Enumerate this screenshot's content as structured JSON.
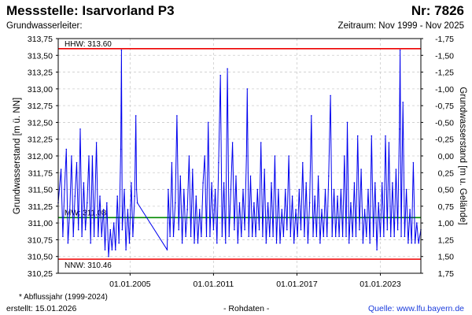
{
  "header": {
    "title": "Messstelle: Isarvorland P3",
    "number": "Nr: 7826",
    "aquifer": "Grundwasserleiter:",
    "period": "Zeitraum: Nov 1999 - Nov 2025"
  },
  "footer": {
    "note": "* Abflussjahr (1999-2024)",
    "created": "erstellt:  15.01.2026",
    "data_kind": "- Rohdaten -",
    "source": "Quelle: www.lfu.bayern.de"
  },
  "colors": {
    "series": "#0000ee",
    "hhw_nnw": "#ee0000",
    "mw": "#008800",
    "grid": "#cccccc"
  },
  "chart_data": {
    "type": "line",
    "title": "",
    "ylabel": "Grundwasserstand [m ü. NN]",
    "y2label": "Grundwasserstand [m u. Gelände]",
    "ylim": [
      310.25,
      313.75
    ],
    "y_ticks": [
      "313,75",
      "313,50",
      "313,25",
      "313,00",
      "312,75",
      "312,50",
      "312,25",
      "312,00",
      "311,75",
      "311,50",
      "311,25",
      "311,00",
      "310,75",
      "310,50",
      "310,25"
    ],
    "y2lim": [
      1.75,
      -1.75
    ],
    "y2_ticks": [
      "-1,75",
      "-1,50",
      "-1,25",
      "-1,00",
      "-0,75",
      "-0,50",
      "-0,25",
      "0,00",
      "0,25",
      "0,50",
      "0,75",
      "1,00",
      "1,25",
      "1,50",
      "1,75"
    ],
    "xlim": [
      "1999-11-01",
      "2025-11-30"
    ],
    "x_ticks": [
      {
        "date": "2005-01-01",
        "label": "01.01.2005"
      },
      {
        "date": "2011-01-01",
        "label": "01.01.2011"
      },
      {
        "date": "2017-01-01",
        "label": "01.01.2017"
      },
      {
        "date": "2023-01-01",
        "label": "01.01.2023"
      }
    ],
    "grid": true,
    "reference_lines": [
      {
        "key": "hhw",
        "label": "HHW: 313.60",
        "value": 313.6
      },
      {
        "key": "mw",
        "label": "MW: 311.08",
        "value": 311.08
      },
      {
        "key": "nnw",
        "label": "NNW: 310.46",
        "value": 310.46
      }
    ],
    "series": [
      {
        "points": [
          {
            "x": "1999-11-01",
            "y": 311.3
          },
          {
            "x": "2000-01-15",
            "y": 311.8
          },
          {
            "x": "2000-03-01",
            "y": 310.8
          },
          {
            "x": "2000-04-15",
            "y": 311.5
          },
          {
            "x": "2000-06-01",
            "y": 312.1
          },
          {
            "x": "2000-07-15",
            "y": 310.7
          },
          {
            "x": "2000-09-01",
            "y": 311.2
          },
          {
            "x": "2000-10-15",
            "y": 312.0
          },
          {
            "x": "2000-12-01",
            "y": 310.8
          },
          {
            "x": "2001-01-15",
            "y": 311.4
          },
          {
            "x": "2001-03-01",
            "y": 311.9
          },
          {
            "x": "2001-04-15",
            "y": 310.9
          },
          {
            "x": "2001-06-01",
            "y": 312.4
          },
          {
            "x": "2001-07-15",
            "y": 310.8
          },
          {
            "x": "2001-09-01",
            "y": 311.6
          },
          {
            "x": "2001-10-15",
            "y": 310.9
          },
          {
            "x": "2001-12-01",
            "y": 311.3
          },
          {
            "x": "2002-01-15",
            "y": 312.0
          },
          {
            "x": "2002-03-01",
            "y": 310.7
          },
          {
            "x": "2002-04-15",
            "y": 312.0
          },
          {
            "x": "2002-06-01",
            "y": 310.8
          },
          {
            "x": "2002-08-01",
            "y": 312.2
          },
          {
            "x": "2002-09-15",
            "y": 310.8
          },
          {
            "x": "2002-11-01",
            "y": 311.4
          },
          {
            "x": "2002-12-15",
            "y": 310.8
          },
          {
            "x": "2003-02-01",
            "y": 311.2
          },
          {
            "x": "2003-03-15",
            "y": 310.6
          },
          {
            "x": "2003-05-01",
            "y": 311.3
          },
          {
            "x": "2003-06-15",
            "y": 310.5
          },
          {
            "x": "2003-08-01",
            "y": 310.9
          },
          {
            "x": "2003-09-15",
            "y": 310.6
          },
          {
            "x": "2003-11-01",
            "y": 311.0
          },
          {
            "x": "2003-12-15",
            "y": 310.6
          },
          {
            "x": "2004-02-01",
            "y": 311.4
          },
          {
            "x": "2004-03-15",
            "y": 310.7
          },
          {
            "x": "2004-05-01",
            "y": 312.1
          },
          {
            "x": "2004-05-20",
            "y": 313.58
          },
          {
            "x": "2004-06-10",
            "y": 310.9
          },
          {
            "x": "2004-08-01",
            "y": 311.5
          },
          {
            "x": "2004-09-15",
            "y": 310.6
          },
          {
            "x": "2004-11-01",
            "y": 311.2
          },
          {
            "x": "2004-12-15",
            "y": 310.7
          },
          {
            "x": "2005-02-01",
            "y": 311.6
          },
          {
            "x": "2005-03-15",
            "y": 310.8
          },
          {
            "x": "2005-05-01",
            "y": 311.4
          },
          {
            "x": "2005-06-01",
            "y": 312.6
          },
          {
            "x": "2005-06-20",
            "y": 311.5
          },
          {
            "x": "2005-07-10",
            "y": 311.3
          },
          {
            "x": "2007-09-01",
            "y": 310.6
          },
          {
            "x": "2007-10-01",
            "y": 311.5
          },
          {
            "x": "2007-11-15",
            "y": 310.8
          },
          {
            "x": "2008-01-01",
            "y": 311.9
          },
          {
            "x": "2008-02-15",
            "y": 310.8
          },
          {
            "x": "2008-04-01",
            "y": 311.3
          },
          {
            "x": "2008-05-15",
            "y": 312.6
          },
          {
            "x": "2008-07-01",
            "y": 310.9
          },
          {
            "x": "2008-08-15",
            "y": 311.7
          },
          {
            "x": "2008-10-01",
            "y": 310.7
          },
          {
            "x": "2008-11-15",
            "y": 311.5
          },
          {
            "x": "2009-01-01",
            "y": 310.8
          },
          {
            "x": "2009-02-15",
            "y": 311.2
          },
          {
            "x": "2009-04-01",
            "y": 312.0
          },
          {
            "x": "2009-05-15",
            "y": 310.8
          },
          {
            "x": "2009-07-01",
            "y": 311.8
          },
          {
            "x": "2009-08-15",
            "y": 310.7
          },
          {
            "x": "2009-10-01",
            "y": 311.4
          },
          {
            "x": "2009-11-15",
            "y": 310.7
          },
          {
            "x": "2010-01-01",
            "y": 311.2
          },
          {
            "x": "2010-02-15",
            "y": 310.8
          },
          {
            "x": "2010-04-01",
            "y": 311.6
          },
          {
            "x": "2010-05-15",
            "y": 312.0
          },
          {
            "x": "2010-07-01",
            "y": 310.8
          },
          {
            "x": "2010-08-15",
            "y": 312.5
          },
          {
            "x": "2010-10-01",
            "y": 310.8
          },
          {
            "x": "2010-11-15",
            "y": 311.6
          },
          {
            "x": "2011-01-01",
            "y": 310.9
          },
          {
            "x": "2011-02-15",
            "y": 311.5
          },
          {
            "x": "2011-04-01",
            "y": 310.7
          },
          {
            "x": "2011-05-15",
            "y": 311.9
          },
          {
            "x": "2011-07-01",
            "y": 313.2
          },
          {
            "x": "2011-08-15",
            "y": 310.8
          },
          {
            "x": "2011-10-01",
            "y": 311.6
          },
          {
            "x": "2011-11-15",
            "y": 310.7
          },
          {
            "x": "2012-01-01",
            "y": 313.3
          },
          {
            "x": "2012-02-15",
            "y": 310.8
          },
          {
            "x": "2012-04-01",
            "y": 311.5
          },
          {
            "x": "2012-05-15",
            "y": 312.2
          },
          {
            "x": "2012-07-01",
            "y": 310.9
          },
          {
            "x": "2012-08-15",
            "y": 311.7
          },
          {
            "x": "2012-10-01",
            "y": 310.7
          },
          {
            "x": "2012-11-15",
            "y": 311.3
          },
          {
            "x": "2013-01-01",
            "y": 310.8
          },
          {
            "x": "2013-02-15",
            "y": 311.5
          },
          {
            "x": "2013-04-01",
            "y": 310.9
          },
          {
            "x": "2013-05-15",
            "y": 312.0
          },
          {
            "x": "2013-06-05",
            "y": 313.0
          },
          {
            "x": "2013-07-15",
            "y": 310.8
          },
          {
            "x": "2013-09-01",
            "y": 311.7
          },
          {
            "x": "2013-10-15",
            "y": 310.8
          },
          {
            "x": "2013-12-01",
            "y": 311.3
          },
          {
            "x": "2014-01-15",
            "y": 310.8
          },
          {
            "x": "2014-03-01",
            "y": 311.5
          },
          {
            "x": "2014-04-15",
            "y": 310.9
          },
          {
            "x": "2014-06-01",
            "y": 312.2
          },
          {
            "x": "2014-07-15",
            "y": 310.8
          },
          {
            "x": "2014-09-01",
            "y": 311.8
          },
          {
            "x": "2014-10-15",
            "y": 310.7
          },
          {
            "x": "2014-12-01",
            "y": 311.3
          },
          {
            "x": "2015-01-15",
            "y": 310.8
          },
          {
            "x": "2015-03-01",
            "y": 311.6
          },
          {
            "x": "2015-04-15",
            "y": 310.8
          },
          {
            "x": "2015-06-01",
            "y": 312.0
          },
          {
            "x": "2015-07-15",
            "y": 310.7
          },
          {
            "x": "2015-09-01",
            "y": 311.5
          },
          {
            "x": "2015-10-15",
            "y": 310.7
          },
          {
            "x": "2015-12-01",
            "y": 311.2
          },
          {
            "x": "2016-01-15",
            "y": 310.8
          },
          {
            "x": "2016-03-01",
            "y": 311.5
          },
          {
            "x": "2016-04-15",
            "y": 310.9
          },
          {
            "x": "2016-06-01",
            "y": 312.0
          },
          {
            "x": "2016-07-15",
            "y": 310.8
          },
          {
            "x": "2016-09-01",
            "y": 311.4
          },
          {
            "x": "2016-10-15",
            "y": 310.7
          },
          {
            "x": "2016-12-01",
            "y": 311.2
          },
          {
            "x": "2017-01-15",
            "y": 310.8
          },
          {
            "x": "2017-03-01",
            "y": 311.5
          },
          {
            "x": "2017-04-15",
            "y": 310.9
          },
          {
            "x": "2017-06-01",
            "y": 311.9
          },
          {
            "x": "2017-07-15",
            "y": 310.8
          },
          {
            "x": "2017-09-01",
            "y": 311.6
          },
          {
            "x": "2017-10-15",
            "y": 310.7
          },
          {
            "x": "2017-12-01",
            "y": 311.3
          },
          {
            "x": "2018-01-15",
            "y": 312.6
          },
          {
            "x": "2018-03-01",
            "y": 310.8
          },
          {
            "x": "2018-04-15",
            "y": 311.4
          },
          {
            "x": "2018-06-01",
            "y": 310.8
          },
          {
            "x": "2018-07-15",
            "y": 311.7
          },
          {
            "x": "2018-09-01",
            "y": 310.7
          },
          {
            "x": "2018-10-15",
            "y": 311.2
          },
          {
            "x": "2018-12-01",
            "y": 310.8
          },
          {
            "x": "2019-01-15",
            "y": 311.5
          },
          {
            "x": "2019-03-01",
            "y": 310.8
          },
          {
            "x": "2019-04-15",
            "y": 311.7
          },
          {
            "x": "2019-06-01",
            "y": 312.9
          },
          {
            "x": "2019-07-15",
            "y": 310.8
          },
          {
            "x": "2019-09-01",
            "y": 311.5
          },
          {
            "x": "2019-10-15",
            "y": 310.8
          },
          {
            "x": "2019-12-01",
            "y": 311.4
          },
          {
            "x": "2020-01-15",
            "y": 310.8
          },
          {
            "x": "2020-03-01",
            "y": 311.5
          },
          {
            "x": "2020-04-15",
            "y": 310.8
          },
          {
            "x": "2020-06-01",
            "y": 312.0
          },
          {
            "x": "2020-07-15",
            "y": 310.8
          },
          {
            "x": "2020-08-15",
            "y": 312.5
          },
          {
            "x": "2020-10-01",
            "y": 310.7
          },
          {
            "x": "2020-11-15",
            "y": 311.3
          },
          {
            "x": "2021-01-01",
            "y": 310.8
          },
          {
            "x": "2021-02-15",
            "y": 311.6
          },
          {
            "x": "2021-04-01",
            "y": 310.8
          },
          {
            "x": "2021-05-15",
            "y": 312.3
          },
          {
            "x": "2021-07-01",
            "y": 310.9
          },
          {
            "x": "2021-08-15",
            "y": 311.8
          },
          {
            "x": "2021-10-01",
            "y": 310.7
          },
          {
            "x": "2021-11-15",
            "y": 311.2
          },
          {
            "x": "2022-01-01",
            "y": 310.8
          },
          {
            "x": "2022-02-15",
            "y": 311.5
          },
          {
            "x": "2022-04-01",
            "y": 310.7
          },
          {
            "x": "2022-05-15",
            "y": 312.3
          },
          {
            "x": "2022-07-01",
            "y": 310.8
          },
          {
            "x": "2022-08-15",
            "y": 311.6
          },
          {
            "x": "2022-10-01",
            "y": 310.6
          },
          {
            "x": "2022-11-15",
            "y": 311.3
          },
          {
            "x": "2023-01-01",
            "y": 310.8
          },
          {
            "x": "2023-02-15",
            "y": 311.6
          },
          {
            "x": "2023-04-01",
            "y": 310.8
          },
          {
            "x": "2023-05-15",
            "y": 312.3
          },
          {
            "x": "2023-07-01",
            "y": 310.9
          },
          {
            "x": "2023-08-15",
            "y": 312.2
          },
          {
            "x": "2023-10-01",
            "y": 310.8
          },
          {
            "x": "2023-11-15",
            "y": 311.6
          },
          {
            "x": "2024-01-01",
            "y": 310.8
          },
          {
            "x": "2024-02-15",
            "y": 311.8
          },
          {
            "x": "2024-04-01",
            "y": 310.9
          },
          {
            "x": "2024-05-15",
            "y": 312.4
          },
          {
            "x": "2024-06-03",
            "y": 313.58
          },
          {
            "x": "2024-07-01",
            "y": 310.8
          },
          {
            "x": "2024-08-15",
            "y": 312.8
          },
          {
            "x": "2024-10-01",
            "y": 310.8
          },
          {
            "x": "2024-11-15",
            "y": 311.5
          },
          {
            "x": "2025-01-01",
            "y": 310.7
          },
          {
            "x": "2025-02-15",
            "y": 311.2
          },
          {
            "x": "2025-04-01",
            "y": 310.7
          },
          {
            "x": "2025-05-15",
            "y": 311.9
          },
          {
            "x": "2025-07-01",
            "y": 310.7
          },
          {
            "x": "2025-08-15",
            "y": 311.0
          },
          {
            "x": "2025-10-01",
            "y": 310.7
          },
          {
            "x": "2025-11-30",
            "y": 310.9
          }
        ]
      }
    ]
  }
}
